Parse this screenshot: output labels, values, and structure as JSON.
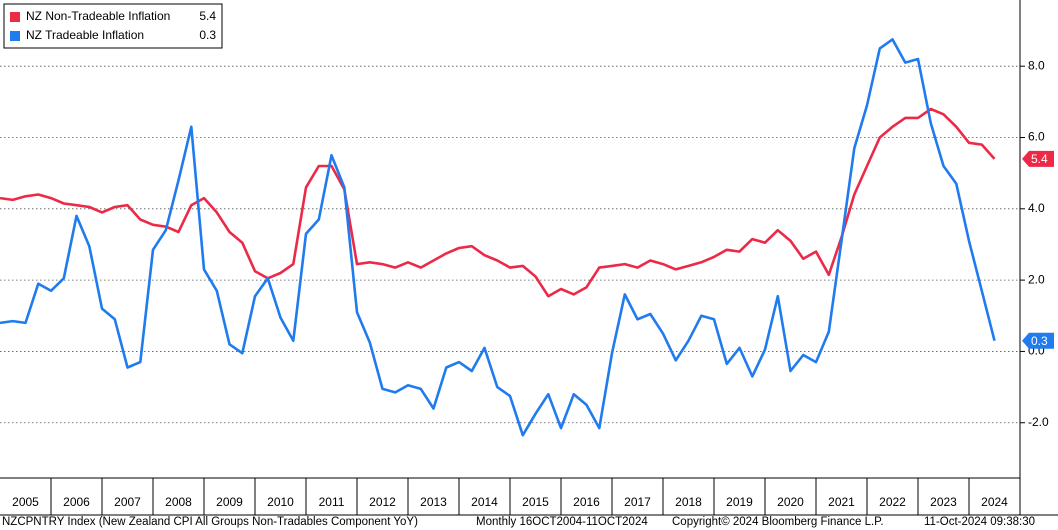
{
  "chart_data": {
    "type": "line",
    "x": [
      2005,
      2005.25,
      2005.5,
      2005.75,
      2006,
      2006.25,
      2006.5,
      2006.75,
      2007,
      2007.25,
      2007.5,
      2007.75,
      2008,
      2008.25,
      2008.5,
      2008.75,
      2009,
      2009.25,
      2009.5,
      2009.75,
      2010,
      2010.25,
      2010.5,
      2010.75,
      2011,
      2011.25,
      2011.5,
      2011.75,
      2012,
      2012.25,
      2012.5,
      2012.75,
      2013,
      2013.25,
      2013.5,
      2013.75,
      2014,
      2014.25,
      2014.5,
      2014.75,
      2015,
      2015.25,
      2015.5,
      2015.75,
      2016,
      2016.25,
      2016.5,
      2016.75,
      2017,
      2017.25,
      2017.5,
      2017.75,
      2018,
      2018.25,
      2018.5,
      2018.75,
      2019,
      2019.25,
      2019.5,
      2019.75,
      2020,
      2020.25,
      2020.5,
      2020.75,
      2021,
      2021.25,
      2021.5,
      2021.75,
      2022,
      2022.25,
      2022.5,
      2022.75,
      2023,
      2023.25,
      2023.5,
      2023.75,
      2024,
      2024.25,
      2024.5
    ],
    "series": [
      {
        "name": "NZ Non-Tradeable Inflation",
        "color": "#ec2a48",
        "values": [
          4.3,
          4.25,
          4.35,
          4.4,
          4.3,
          4.15,
          4.1,
          4.05,
          3.9,
          4.05,
          4.1,
          3.7,
          3.55,
          3.5,
          3.35,
          4.1,
          4.3,
          3.9,
          3.35,
          3.05,
          2.25,
          2.05,
          2.2,
          2.45,
          4.6,
          5.2,
          5.2,
          4.55,
          2.45,
          2.5,
          2.45,
          2.35,
          2.5,
          2.35,
          2.55,
          2.75,
          2.9,
          2.95,
          2.7,
          2.55,
          2.35,
          2.4,
          2.1,
          1.55,
          1.75,
          1.6,
          1.8,
          2.35,
          2.4,
          2.45,
          2.35,
          2.55,
          2.45,
          2.3,
          2.4,
          2.5,
          2.65,
          2.85,
          2.8,
          3.15,
          3.05,
          3.4,
          3.1,
          2.6,
          2.8,
          2.15,
          3.2,
          4.4,
          5.2,
          6.0,
          6.3,
          6.55,
          6.55,
          6.8,
          6.65,
          6.3,
          5.85,
          5.8,
          5.4
        ]
      },
      {
        "name": "NZ Tradeable Inflation",
        "color": "#1f7bee",
        "values": [
          0.8,
          0.85,
          0.8,
          1.9,
          1.7,
          2.05,
          3.8,
          2.95,
          1.2,
          0.9,
          -0.45,
          -0.3,
          2.85,
          3.4,
          4.8,
          6.3,
          2.3,
          1.7,
          0.2,
          -0.05,
          1.55,
          2.05,
          0.95,
          0.3,
          3.3,
          3.7,
          5.5,
          4.6,
          1.1,
          0.25,
          -1.05,
          -1.15,
          -0.95,
          -1.05,
          -1.6,
          -0.45,
          -0.3,
          -0.55,
          0.1,
          -1.0,
          -1.25,
          -2.35,
          -1.75,
          -1.2,
          -2.15,
          -1.2,
          -1.5,
          -2.15,
          -0.05,
          1.6,
          0.9,
          1.05,
          0.5,
          -0.25,
          0.3,
          1.0,
          0.9,
          -0.35,
          0.1,
          -0.7,
          0.05,
          1.55,
          -0.55,
          -0.1,
          -0.3,
          0.55,
          3.1,
          5.7,
          6.9,
          8.5,
          8.75,
          8.1,
          8.2,
          6.4,
          5.2,
          4.7,
          3.1,
          1.7,
          0.3
        ]
      }
    ],
    "xlim": [
      2005,
      2025
    ],
    "xticks": [
      2005,
      2006,
      2007,
      2008,
      2009,
      2010,
      2011,
      2012,
      2013,
      2014,
      2015,
      2016,
      2017,
      2018,
      2019,
      2020,
      2021,
      2022,
      2023,
      2024
    ],
    "ylim": [
      -3.55,
      9.8
    ],
    "yticks": [
      {
        "value": -2,
        "label": "-2.0"
      },
      {
        "value": 0,
        "label": "0.0"
      },
      {
        "value": 2,
        "label": "2.0"
      },
      {
        "value": 4,
        "label": "4.0"
      },
      {
        "value": 6,
        "label": "6.0"
      },
      {
        "value": 8,
        "label": "8.0"
      }
    ],
    "grid": true,
    "legend": "top-left",
    "footer": [
      "NZCPNTRY Index (New Zealand CPI All Groups Non-Tradables Component YoY)",
      "Monthly 16OCT2004-11OCT2024",
      "Copyright© 2024 Bloomberg Finance L.P.",
      "11-Oct-2024 09:38:30"
    ]
  }
}
